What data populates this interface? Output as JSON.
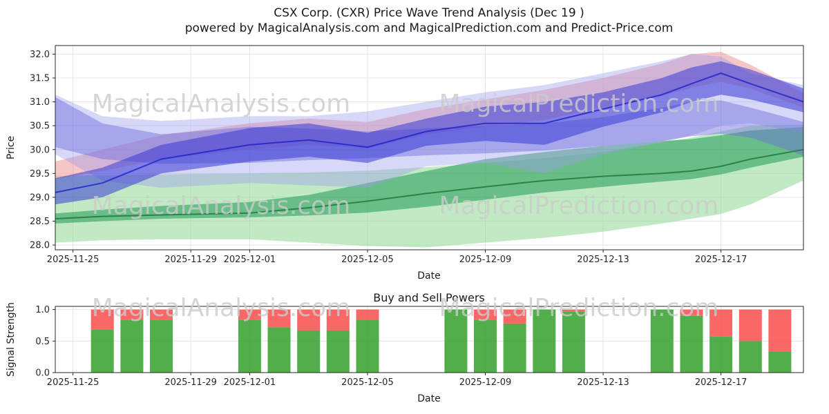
{
  "title": {
    "line1": "CSX Corp. (CXR) Price Wave Trend Analysis (Dec 19 )",
    "line2": "powered by MagicalAnalysis.com and MagicalPrediction.com and Predict-Price.com"
  },
  "watermarks": {
    "left": "MagicalAnalysis.com",
    "right": "MagicalPrediction.com"
  },
  "chart_data": [
    {
      "type": "area",
      "title": "",
      "xlabel": "Date",
      "ylabel": "Price",
      "ylim": [
        27.9,
        32.18
      ],
      "yticks": [
        28.0,
        28.5,
        29.0,
        29.5,
        30.0,
        30.5,
        31.0,
        31.5,
        32.0
      ],
      "x_unit": "days since 2025-11-25",
      "xticks": [
        {
          "pos": 0,
          "label": "2025-11-25"
        },
        {
          "pos": 4,
          "label": "2025-11-29"
        },
        {
          "pos": 6,
          "label": "2025-12-01"
        },
        {
          "pos": 10,
          "label": "2025-12-05"
        },
        {
          "pos": 14,
          "label": "2025-12-09"
        },
        {
          "pos": 18,
          "label": "2025-12-13"
        },
        {
          "pos": 22,
          "label": "2025-12-17"
        }
      ],
      "sample_x": [
        -0.6,
        1,
        3,
        6,
        8,
        10,
        12,
        14,
        16,
        18,
        20,
        21,
        22,
        23,
        24.8
      ],
      "bands": [
        {
          "name": "outer-green",
          "color": "#84d58a",
          "opacity": 0.5,
          "lower": [
            28.05,
            28.1,
            28.12,
            28.12,
            28.05,
            27.98,
            27.95,
            28.05,
            28.15,
            28.28,
            28.45,
            28.55,
            28.65,
            28.85,
            29.35
          ],
          "upper": [
            29.45,
            29.46,
            29.48,
            29.5,
            29.52,
            29.56,
            29.63,
            29.72,
            29.82,
            29.95,
            30.15,
            30.25,
            30.38,
            30.5,
            30.52
          ]
        },
        {
          "name": "inner-green",
          "color": "#2f9e5f",
          "opacity": 0.6,
          "lower": [
            28.45,
            28.5,
            28.55,
            28.58,
            28.62,
            28.68,
            28.8,
            28.95,
            29.1,
            29.22,
            29.33,
            29.38,
            29.48,
            29.62,
            29.85
          ],
          "upper": [
            28.66,
            28.74,
            28.82,
            28.9,
            29.05,
            29.3,
            29.55,
            29.8,
            29.95,
            30.08,
            30.18,
            30.22,
            30.3,
            30.4,
            30.47
          ]
        },
        {
          "name": "pink",
          "color": "#f08f8f",
          "opacity": 0.5,
          "lower": [
            29.38,
            29.55,
            29.8,
            30.0,
            30.1,
            30.02,
            30.32,
            30.48,
            30.62,
            30.88,
            31.12,
            31.3,
            31.42,
            31.28,
            30.88
          ],
          "upper": [
            29.75,
            30.0,
            30.3,
            30.55,
            30.65,
            30.58,
            30.85,
            31.05,
            31.25,
            31.5,
            31.8,
            32.0,
            32.05,
            31.78,
            31.18
          ]
        },
        {
          "name": "lavender",
          "color": "#9a9aee",
          "opacity": 0.4,
          "lower": [
            29.9,
            29.35,
            29.2,
            29.3,
            29.25,
            29.2,
            29.65,
            29.72,
            29.5,
            29.9,
            30.15,
            30.3,
            30.5,
            30.55,
            30.35
          ],
          "upper": [
            31.15,
            30.7,
            30.6,
            30.7,
            30.7,
            30.8,
            31.0,
            31.2,
            31.35,
            31.6,
            31.85,
            32.0,
            31.95,
            31.6,
            31.35
          ]
        },
        {
          "name": "steel-blue",
          "color": "#6a6ae0",
          "opacity": 0.45,
          "lower": [
            30.05,
            29.8,
            29.7,
            29.72,
            29.78,
            29.82,
            29.88,
            29.92,
            29.98,
            30.08,
            30.18,
            30.28,
            30.33,
            30.25,
            29.88
          ],
          "upper": [
            31.1,
            30.55,
            30.32,
            30.48,
            30.44,
            30.38,
            30.44,
            30.5,
            30.55,
            30.68,
            30.88,
            31.0,
            31.03,
            30.88,
            30.58
          ]
        },
        {
          "name": "main-blue",
          "color": "#3a3ad6",
          "opacity": 0.55,
          "lower": [
            28.85,
            29.0,
            29.5,
            29.75,
            29.85,
            29.72,
            30.08,
            30.18,
            30.1,
            30.48,
            30.78,
            31.0,
            31.15,
            31.05,
            30.78
          ],
          "upper": [
            29.4,
            29.62,
            30.1,
            30.45,
            30.55,
            30.35,
            30.65,
            30.9,
            31.0,
            31.2,
            31.5,
            31.72,
            31.85,
            31.68,
            31.28
          ]
        }
      ],
      "lines": [
        {
          "name": "trend-blue",
          "color": "#2525c8",
          "width": 2,
          "values": [
            29.1,
            29.3,
            29.8,
            30.1,
            30.2,
            30.05,
            30.38,
            30.55,
            30.55,
            30.85,
            31.15,
            31.38,
            31.6,
            31.38,
            31.0
          ]
        },
        {
          "name": "trend-green",
          "color": "#1e7a40",
          "width": 2,
          "values": [
            28.55,
            28.6,
            28.63,
            28.67,
            28.78,
            28.92,
            29.08,
            29.22,
            29.35,
            29.44,
            29.5,
            29.55,
            29.65,
            29.8,
            30.0
          ]
        }
      ]
    },
    {
      "type": "bar",
      "title": "Buy and Sell Powers",
      "xlabel": "Date",
      "ylabel": "Signal Strength",
      "ylim": [
        0,
        1.05
      ],
      "yticks": [
        0.0,
        0.5,
        1.0
      ],
      "xticks": [
        {
          "pos": 0,
          "label": "2025-11-25"
        },
        {
          "pos": 4,
          "label": "2025-11-29"
        },
        {
          "pos": 6,
          "label": "2025-12-01"
        },
        {
          "pos": 10,
          "label": "2025-12-05"
        },
        {
          "pos": 14,
          "label": "2025-12-09"
        },
        {
          "pos": 18,
          "label": "2025-12-13"
        },
        {
          "pos": 22,
          "label": "2025-12-17"
        }
      ],
      "colors": {
        "buy": "#33a02c",
        "sell": "#f94c4c"
      },
      "bars": {
        "dates": [
          "2025-11-26",
          "2025-11-27",
          "2025-11-28",
          "2025-12-01",
          "2025-12-02",
          "2025-12-03",
          "2025-12-04",
          "2025-12-05",
          "2025-12-08",
          "2025-12-09",
          "2025-12-10",
          "2025-12-11",
          "2025-12-12",
          "2025-12-15",
          "2025-12-16",
          "2025-12-17",
          "2025-12-18",
          "2025-12-19"
        ],
        "x": [
          1,
          2,
          3,
          6,
          7,
          8,
          9,
          10,
          13,
          14,
          15,
          16,
          17,
          20,
          21,
          22,
          23,
          24
        ],
        "buy": [
          0.68,
          0.84,
          0.84,
          0.84,
          0.72,
          0.67,
          0.67,
          0.84,
          1.0,
          0.84,
          0.78,
          1.0,
          0.97,
          1.0,
          0.9,
          0.57,
          0.5,
          0.33
        ],
        "sell": [
          0.32,
          0.16,
          0.16,
          0.16,
          0.28,
          0.33,
          0.33,
          0.16,
          0.0,
          0.16,
          0.22,
          0.0,
          0.03,
          0.0,
          0.1,
          0.43,
          0.5,
          0.67
        ]
      }
    }
  ]
}
